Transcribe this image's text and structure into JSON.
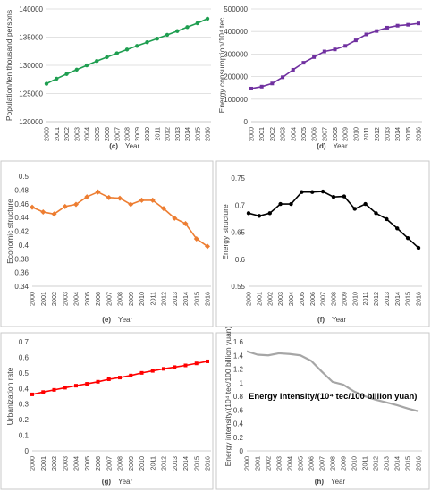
{
  "years": [
    "2000",
    "2001",
    "2002",
    "2003",
    "2004",
    "2005",
    "2006",
    "2007",
    "2008",
    "2009",
    "2010",
    "2011",
    "2012",
    "2013",
    "2014",
    "2015",
    "2016"
  ],
  "chart_data": [
    {
      "id": "c",
      "type": "line",
      "panel_label": "(c)",
      "xlabel": "Year",
      "ylabel": "Population/ten thousand persons",
      "ylim": [
        120000,
        140000
      ],
      "yticks": [
        "120000",
        "125000",
        "130000",
        "135000",
        "140000"
      ],
      "ytick_values": [
        120000,
        125000,
        130000,
        135000,
        140000
      ],
      "color": "#1e9e50",
      "marker": "circle",
      "grid": "horizontal",
      "frame": false,
      "values": [
        126743,
        127627,
        128453,
        129227,
        129988,
        130756,
        131448,
        132129,
        132802,
        133450,
        134091,
        134735,
        135404,
        136072,
        136782,
        137462,
        138271
      ]
    },
    {
      "id": "d",
      "type": "line",
      "panel_label": "(d)",
      "xlabel": "Year",
      "ylabel": "Energy consumption/10⁴ tec",
      "ylim": [
        0,
        500000
      ],
      "yticks": [
        "0",
        "100000",
        "200000",
        "300000",
        "400000",
        "500000"
      ],
      "ytick_values": [
        0,
        100000,
        200000,
        300000,
        400000,
        500000
      ],
      "color": "#7030a0",
      "marker": "square",
      "grid": "horizontal",
      "frame": false,
      "values": [
        146964,
        155547,
        169577,
        197083,
        230281,
        261369,
        286467,
        311442,
        320611,
        336126,
        360648,
        387043,
        402138,
        416913,
        425806,
        429905,
        435819
      ]
    },
    {
      "id": "e",
      "type": "line",
      "panel_label": "(e)",
      "xlabel": "Year",
      "ylabel": "Economic structure",
      "ylim": [
        0.34,
        0.5
      ],
      "yticks": [
        "0.34",
        "0.36",
        "0.38",
        "0.4",
        "0.42",
        "0.44",
        "0.46",
        "0.48",
        "0.5"
      ],
      "ytick_values": [
        0.34,
        0.36,
        0.38,
        0.4,
        0.42,
        0.44,
        0.46,
        0.48,
        0.5
      ],
      "color": "#ed7d31",
      "marker": "diamond",
      "grid": "none",
      "frame": true,
      "values": [
        0.455,
        0.448,
        0.445,
        0.456,
        0.459,
        0.47,
        0.477,
        0.469,
        0.468,
        0.459,
        0.465,
        0.465,
        0.453,
        0.439,
        0.431,
        0.409,
        0.398
      ]
    },
    {
      "id": "f",
      "type": "line",
      "panel_label": "(f)",
      "xlabel": "Year",
      "ylabel": "Energy structure",
      "ylim": [
        0.55,
        0.75
      ],
      "yticks": [
        "0.55",
        "0.6",
        "0.65",
        "0.7",
        "0.75"
      ],
      "ytick_values": [
        0.55,
        0.6,
        0.65,
        0.7,
        0.75
      ],
      "color": "#000000",
      "marker": "circle",
      "grid": "none",
      "frame": true,
      "values": [
        0.685,
        0.68,
        0.685,
        0.702,
        0.702,
        0.724,
        0.724,
        0.725,
        0.715,
        0.716,
        0.693,
        0.702,
        0.685,
        0.674,
        0.657,
        0.639,
        0.621
      ]
    },
    {
      "id": "g",
      "type": "line",
      "panel_label": "(g)",
      "xlabel": "Year",
      "ylabel": "Urbanization rate",
      "ylim": [
        0,
        0.7
      ],
      "yticks": [
        "0",
        "0.1",
        "0.2",
        "0.3",
        "0.4",
        "0.5",
        "0.6",
        "0.7"
      ],
      "ytick_values": [
        0,
        0.1,
        0.2,
        0.3,
        0.4,
        0.5,
        0.6,
        0.7
      ],
      "color": "#ff0000",
      "marker": "square",
      "grid": "none",
      "frame": true,
      "values": [
        0.362,
        0.377,
        0.391,
        0.405,
        0.418,
        0.43,
        0.443,
        0.459,
        0.47,
        0.483,
        0.5,
        0.513,
        0.526,
        0.537,
        0.548,
        0.561,
        0.574
      ]
    },
    {
      "id": "h",
      "type": "line",
      "panel_label": "(h)",
      "xlabel": "Year",
      "ylabel": "Energy intensity/(10⁴ tec/100 billion yuan)",
      "ylim": [
        0,
        1.6
      ],
      "yticks": [
        "0",
        "0.2",
        "0.4",
        "0.6",
        "0.8",
        "1",
        "1.2",
        "1.4",
        "1.6"
      ],
      "ytick_values": [
        0,
        0.2,
        0.4,
        0.6,
        0.8,
        1.0,
        1.2,
        1.4,
        1.6
      ],
      "color": "#a6a6a6",
      "marker": "none",
      "grid": "none",
      "frame": true,
      "annotation": "Energy intensity/(10⁴ tec/100 billion yuan)",
      "values": [
        1.46,
        1.41,
        1.4,
        1.43,
        1.42,
        1.4,
        1.32,
        1.16,
        1.01,
        0.97,
        0.87,
        0.8,
        0.75,
        0.71,
        0.67,
        0.62,
        0.58
      ]
    }
  ]
}
